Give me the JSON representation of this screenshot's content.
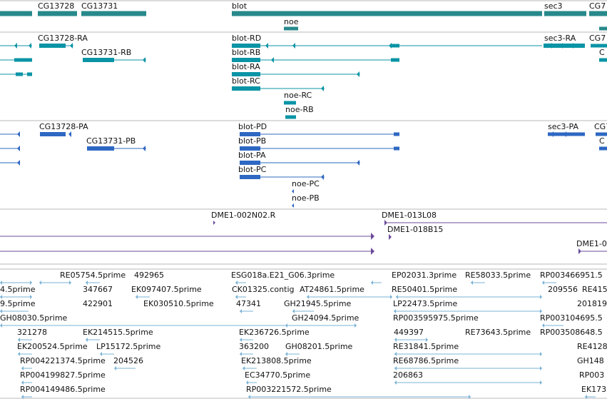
{
  "colors": {
    "gene": "#27898b",
    "transcript": "#0a94a6",
    "protein": "#2e68c2",
    "clone": "#6b4b9b",
    "est": "#7ab3d6",
    "separator": "#b9b9b9",
    "text": "#111111"
  },
  "tracks": [
    {
      "name": "gene-track",
      "features": [
        {
          "label": "CG13728"
        },
        {
          "label": "CG13731"
        },
        {
          "label": "blot"
        },
        {
          "label": "noe"
        },
        {
          "label": "sec3"
        },
        {
          "label": "CG7"
        }
      ]
    },
    {
      "name": "transcript-track",
      "features": [
        {
          "label": "CG13728-RA"
        },
        {
          "label": "CG13731-RB"
        },
        {
          "label": "blot-RD"
        },
        {
          "label": "blot-RB"
        },
        {
          "label": "blot-RA"
        },
        {
          "label": "blot-RC"
        },
        {
          "label": "noe-RC"
        },
        {
          "label": "noe-RB"
        },
        {
          "label": "sec3-RA"
        },
        {
          "label": "CG7"
        },
        {
          "label": "C"
        }
      ]
    },
    {
      "name": "protein-track",
      "features": [
        {
          "label": "CG13728-PA"
        },
        {
          "label": "CG13731-PB"
        },
        {
          "label": "blot-PD"
        },
        {
          "label": "blot-PB"
        },
        {
          "label": "blot-PA"
        },
        {
          "label": "blot-PC"
        },
        {
          "label": "noe-PC"
        },
        {
          "label": "noe-PB"
        },
        {
          "label": "sec3-PA"
        },
        {
          "label": "CG7"
        },
        {
          "label": "C"
        }
      ]
    },
    {
      "name": "clone-track",
      "features": [
        {
          "label": "DME1-002N02.R"
        },
        {
          "label": "DME1-013L08"
        },
        {
          "label": "DME1-018B15"
        },
        {
          "label": "DME1-0"
        }
      ]
    },
    {
      "name": "est-track",
      "features": [
        {
          "label": "RE05754.5prime"
        },
        {
          "label": "492965"
        },
        {
          "label": "ESG018a.E21_G06.3prime"
        },
        {
          "label": "EP02031.3prime"
        },
        {
          "label": "RE58033.5prime"
        },
        {
          "label": "RP003466951.5"
        },
        {
          "label": "4.5prime"
        },
        {
          "label": "347667"
        },
        {
          "label": "EK097407.5prime"
        },
        {
          "label": "CK01325.contig"
        },
        {
          "label": "AT24861.5prime"
        },
        {
          "label": "RE50401.5prime"
        },
        {
          "label": "209556"
        },
        {
          "label": "RE415"
        },
        {
          "label": "9.5prime"
        },
        {
          "label": "422901"
        },
        {
          "label": "EK030510.5prime"
        },
        {
          "label": "47341"
        },
        {
          "label": "GH21945.5prime"
        },
        {
          "label": "LP22473.5prime"
        },
        {
          "label": "201819"
        },
        {
          "label": "GH08030.5prime"
        },
        {
          "label": "GH24094.5prime"
        },
        {
          "label": "RP003595975.5prime"
        },
        {
          "label": "RP003104695.5"
        },
        {
          "label": "321278"
        },
        {
          "label": "EK214515.5prime"
        },
        {
          "label": "EK236726.5prime"
        },
        {
          "label": "449397"
        },
        {
          "label": "RE73643.5prime"
        },
        {
          "label": "RP003508648.5"
        },
        {
          "label": "EK200524.5prime"
        },
        {
          "label": "LP15172.5prime"
        },
        {
          "label": "363200"
        },
        {
          "label": "GH08201.5prime"
        },
        {
          "label": "RE31841.5prime"
        },
        {
          "label": "RE4128"
        },
        {
          "label": "RP004221374.5prime"
        },
        {
          "label": "204526"
        },
        {
          "label": "EK213808.5prime"
        },
        {
          "label": "RE68786.5prime"
        },
        {
          "label": "GH148"
        },
        {
          "label": "RP004199827.5prime"
        },
        {
          "label": "EC34770.5prime"
        },
        {
          "label": "206863"
        },
        {
          "label": "RP003"
        },
        {
          "label": "RP004149486.5prime"
        },
        {
          "label": "RP003221572.5prime"
        },
        {
          "label": "EK173"
        }
      ]
    }
  ]
}
